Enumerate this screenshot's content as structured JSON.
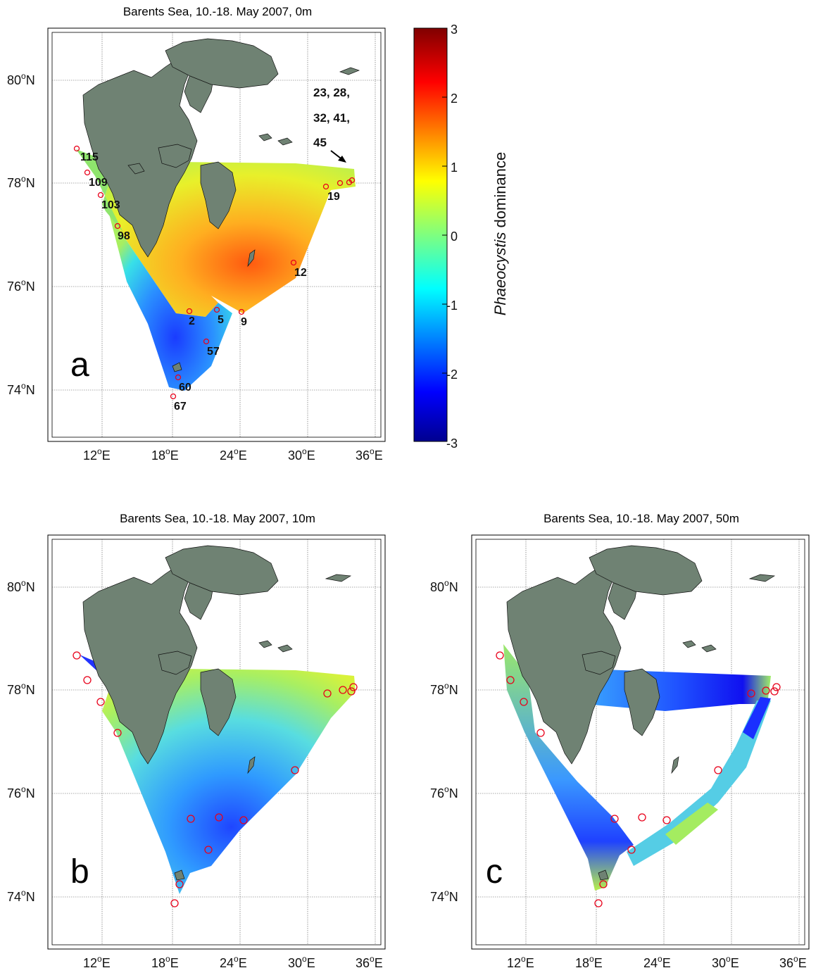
{
  "colorbar": {
    "label_italic": "Phaeocystis",
    "label_rest": " dominance",
    "ticks": [
      "3",
      "2",
      "1",
      "0",
      "-1",
      "-2",
      "-3"
    ],
    "range": [
      -3,
      3
    ]
  },
  "lat_labels": [
    "80",
    "78",
    "76",
    "74"
  ],
  "lat_suffix": "N",
  "lon_labels": [
    "12",
    "18",
    "24",
    "30",
    "36"
  ],
  "lon_suffix": "E",
  "degree_symbol": "o",
  "panels": [
    {
      "id": "a",
      "title": "Barents Sea, 10.-18. May 2007, 0m",
      "letter": "a",
      "station_labels": [
        "115",
        "109",
        "103",
        "98",
        "2",
        "5",
        "9",
        "57",
        "60",
        "67",
        "12",
        "19"
      ],
      "arrow_note": [
        "23, 28,",
        "32, 41,",
        "45"
      ]
    },
    {
      "id": "b",
      "title": "Barents Sea, 10.-18. May 2007, 10m",
      "letter": "b"
    },
    {
      "id": "c",
      "title": "Barents Sea, 10.-18. May 2007, 50m",
      "letter": "c"
    }
  ],
  "colors": {
    "land": "#6f8273",
    "station_marker": "#e8001a"
  }
}
